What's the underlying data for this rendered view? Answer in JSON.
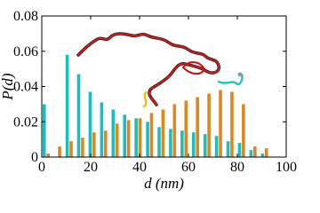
{
  "chart_data": {
    "type": "bar",
    "xlabel": "d (nm)",
    "ylabel": "P(d)",
    "xlim": [
      0,
      100
    ],
    "ylim": [
      0,
      0.08
    ],
    "xticks": [
      0,
      20,
      40,
      60,
      80,
      100
    ],
    "yticks": [
      0,
      0.02,
      0.04,
      0.06,
      0.08
    ],
    "series": [
      {
        "color": "#17bfc4",
        "x": [
          1,
          10.4,
          15.1,
          19.8,
          24.5,
          29.2,
          33.9,
          38.6,
          43.3,
          48,
          52.7,
          57.4,
          62.1,
          66.8,
          71.5,
          76.2,
          80.9,
          85.6,
          90.3
        ],
        "values": [
          0.03,
          0.058,
          0.047,
          0.037,
          0.031,
          0.027,
          0.024,
          0.022,
          0.02,
          0.017,
          0.016,
          0.015,
          0.014,
          0.013,
          0.012,
          0.009,
          0.008,
          0.004,
          0.002
        ]
      },
      {
        "color": "#e0861a",
        "x": [
          2.6,
          7.3,
          12,
          16.7,
          21.4,
          26.1,
          30.8,
          35.5,
          40.2,
          44.9,
          49.6,
          54.3,
          59,
          63.7,
          68.4,
          73.1,
          77.8,
          82.5,
          87.2,
          91.9
        ],
        "values": [
          0.002,
          0.006,
          0.009,
          0.011,
          0.014,
          0.015,
          0.019,
          0.021,
          0.022,
          0.025,
          0.027,
          0.03,
          0.032,
          0.034,
          0.036,
          0.038,
          0.037,
          0.03,
          0.006,
          0.005
        ]
      }
    ]
  }
}
